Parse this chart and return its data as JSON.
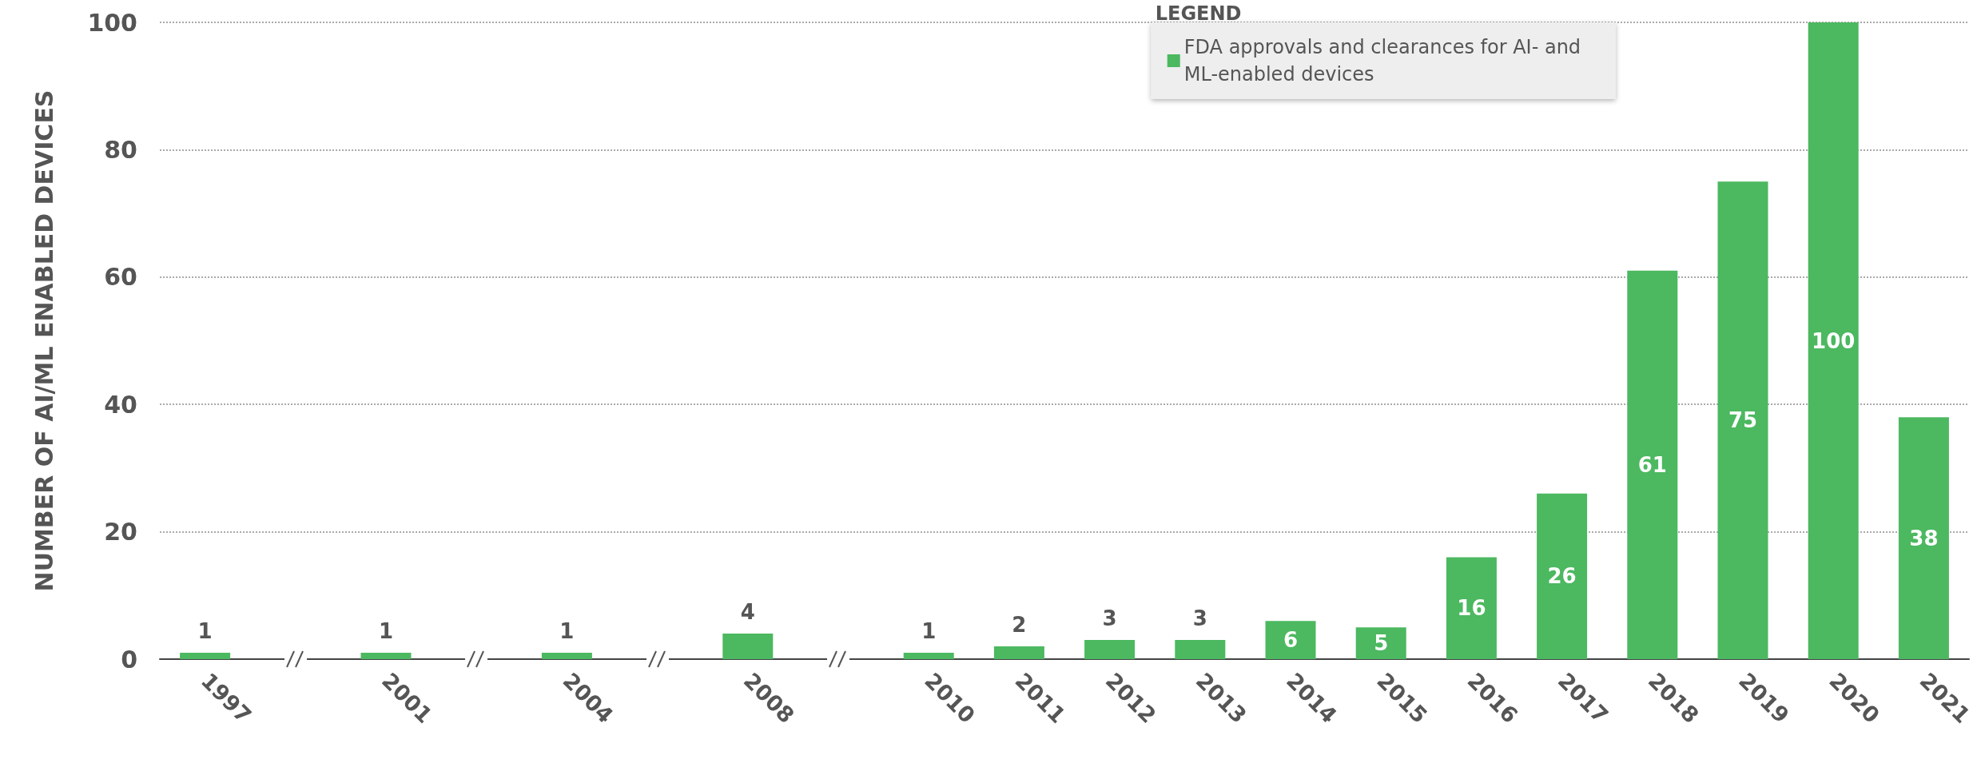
{
  "chart_data": {
    "type": "bar",
    "ylabel": "NUMBER OF AI/ML ENABLED DEVICES",
    "legend_title": "LEGEND",
    "categories": [
      "1997",
      null,
      "2001",
      null,
      "2004",
      null,
      "2008",
      null,
      "2010",
      "2011",
      "2012",
      "2013",
      "2014",
      "2015",
      "2016",
      "2017",
      "2018",
      "2019",
      "2020",
      "2021"
    ],
    "series": [
      {
        "name": "FDA approvals and clearances for AI- and ML-enabled devices",
        "color": "#4cb860",
        "values": [
          1,
          null,
          1,
          null,
          1,
          null,
          4,
          null,
          1,
          2,
          3,
          3,
          6,
          5,
          16,
          26,
          61,
          75,
          100,
          38
        ]
      }
    ],
    "ylim": [
      0,
      100
    ],
    "yticks": [
      0,
      20,
      40,
      60,
      80,
      100
    ],
    "grid": "y",
    "legend": "top",
    "data_labels": true
  }
}
